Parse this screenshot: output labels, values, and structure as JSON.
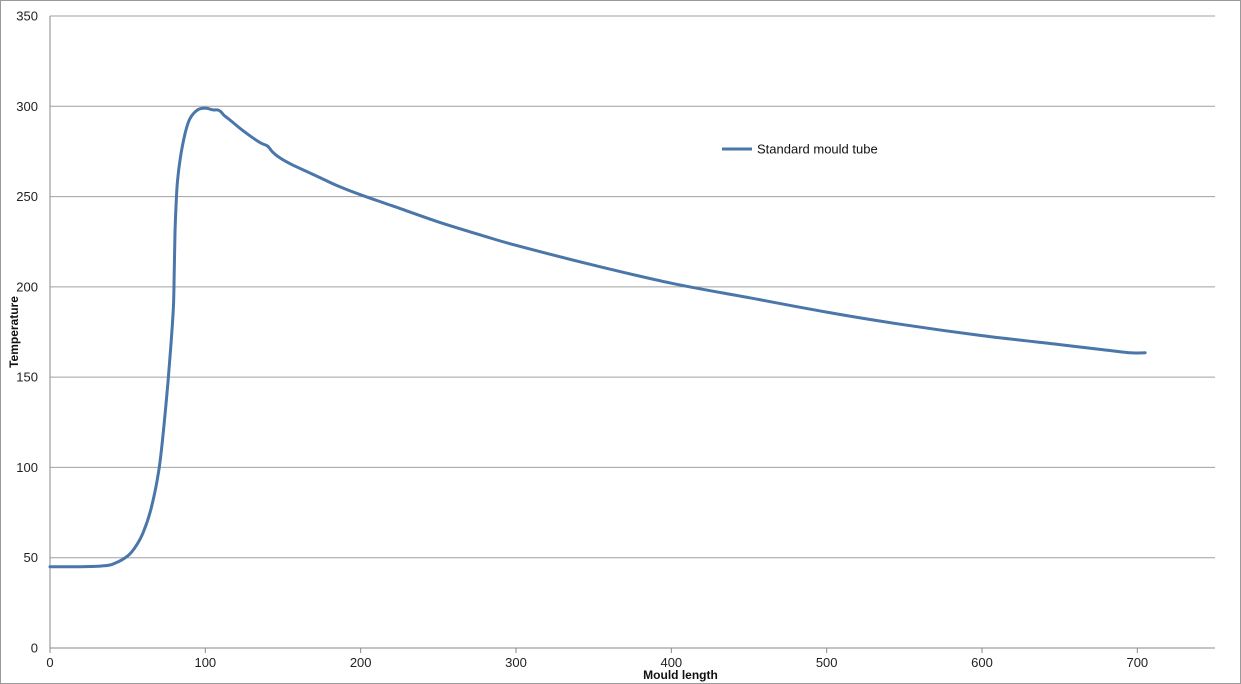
{
  "chart_data": {
    "type": "line",
    "xlabel": "Mould length",
    "ylabel": "Temperature",
    "xlim": [
      0,
      750
    ],
    "ylim": [
      0,
      350
    ],
    "xticks": [
      0,
      100,
      200,
      300,
      400,
      500,
      600,
      700
    ],
    "yticks": [
      0,
      50,
      100,
      150,
      200,
      250,
      300,
      350
    ],
    "grid": {
      "horizontal": true,
      "vertical": false
    },
    "legend_position": "top-right",
    "series": [
      {
        "name": "Standard mould tube",
        "color": "#4a76aa",
        "x": [
          0,
          20,
          35,
          42,
          50,
          55,
          60,
          65,
          70,
          73,
          76,
          78,
          79.5,
          80,
          80.5,
          81,
          82,
          84,
          87,
          90,
          95,
          100,
          105,
          108,
          110,
          112,
          115,
          125,
          135,
          140,
          143,
          147,
          155,
          165,
          170,
          175,
          185,
          200,
          220,
          250,
          280,
          300,
          350,
          400,
          450,
          500,
          550,
          600,
          650,
          680,
          695,
          705
        ],
        "y": [
          45,
          45,
          45.5,
          47,
          51,
          56,
          64,
          77,
          98,
          120,
          148,
          170,
          190,
          210,
          230,
          242,
          258,
          272,
          285,
          293,
          298,
          299,
          298,
          298,
          297,
          295,
          293,
          286,
          280,
          278,
          275,
          272,
          268,
          264,
          262,
          260,
          256,
          251,
          245,
          236,
          228,
          223,
          212,
          202,
          194,
          186,
          179,
          173,
          168,
          165,
          163.5,
          163.5
        ]
      }
    ]
  }
}
